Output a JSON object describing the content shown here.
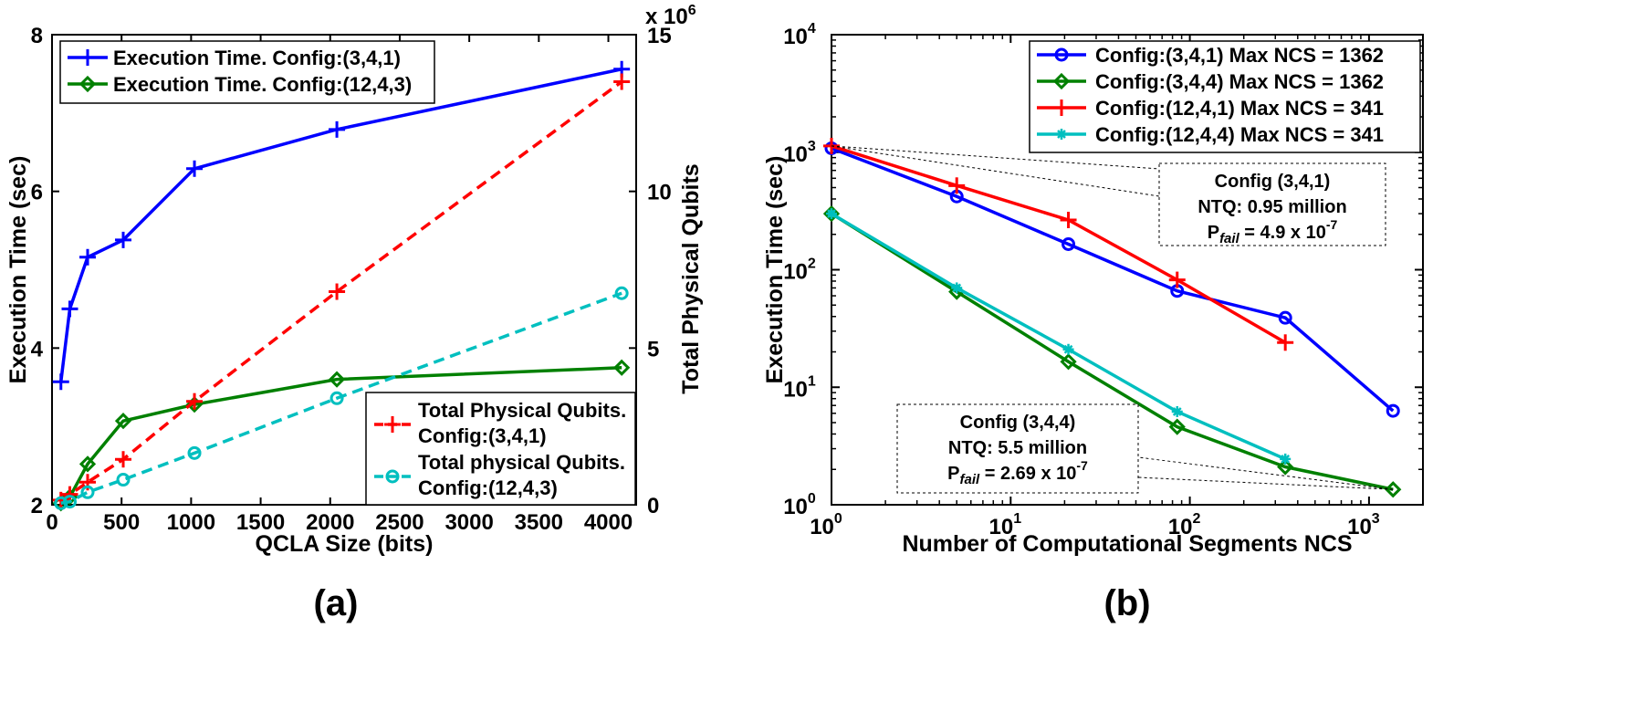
{
  "chart_data": [
    {
      "id": "a",
      "type": "line",
      "panel_label": "(a)",
      "xlabel": "QCLA Size (bits)",
      "ylabel": "Execution Time (sec)",
      "y2label": "Total Physical Qubits",
      "y2_multiplier": "x 10",
      "y2_multiplier_exp": "6",
      "xlim": [
        0,
        4200
      ],
      "ylim": [
        2,
        8
      ],
      "y2lim": [
        0,
        15
      ],
      "xticks": [
        0,
        500,
        1000,
        1500,
        2000,
        2500,
        3000,
        3500,
        4000
      ],
      "yticks": [
        2,
        4,
        6,
        8
      ],
      "y2ticks": [
        0,
        5,
        10,
        15
      ],
      "series": [
        {
          "name": "Execution Time. Config:(3,4,1)",
          "axis": "left",
          "color": "#0000ff",
          "dash": false,
          "marker": "plus",
          "x": [
            64,
            128,
            256,
            512,
            1024,
            2048,
            4096
          ],
          "values": [
            3.57,
            4.5,
            5.16,
            5.38,
            6.29,
            6.79,
            7.56
          ]
        },
        {
          "name": "Execution Time. Config:(12,4,3)",
          "axis": "left",
          "color": "#008000",
          "dash": false,
          "marker": "diamond",
          "x": [
            64,
            128,
            256,
            512,
            1024,
            2048,
            4096
          ],
          "values": [
            2.02,
            2.1,
            2.52,
            3.07,
            3.28,
            3.6,
            3.75
          ]
        },
        {
          "name_line1": "Total Physical Qubits.",
          "name_line2": "Config:(3,4,1)",
          "axis": "right",
          "color": "#ff0000",
          "dash": true,
          "marker": "plus",
          "x": [
            64,
            128,
            256,
            512,
            1024,
            2048,
            4096
          ],
          "values": [
            0.15,
            0.33,
            0.72,
            1.45,
            3.3,
            6.8,
            13.5
          ]
        },
        {
          "name_line1": "Total physical Qubits.",
          "name_line2": "Config:(12,4,3)",
          "axis": "right",
          "color": "#00bfbf",
          "dash": true,
          "marker": "circle",
          "x": [
            64,
            128,
            256,
            512,
            1024,
            2048,
            4096
          ],
          "values": [
            0.05,
            0.1,
            0.4,
            0.8,
            1.65,
            3.4,
            6.75
          ]
        }
      ]
    },
    {
      "id": "b",
      "type": "line",
      "panel_label": "(b)",
      "xlabel": "Number of Computational Segments NCS",
      "ylabel": "Execution Time (sec)",
      "xscale": "log",
      "yscale": "log",
      "xlim": [
        1,
        2000
      ],
      "ylim": [
        1,
        10000
      ],
      "xticks": [
        {
          "base": "10",
          "exp": "0",
          "value": 1
        },
        {
          "base": "10",
          "exp": "1",
          "value": 10
        },
        {
          "base": "10",
          "exp": "2",
          "value": 100
        },
        {
          "base": "10",
          "exp": "3",
          "value": 1000
        }
      ],
      "yticks": [
        {
          "base": "10",
          "exp": "0",
          "value": 1
        },
        {
          "base": "10",
          "exp": "1",
          "value": 10
        },
        {
          "base": "10",
          "exp": "2",
          "value": 100
        },
        {
          "base": "10",
          "exp": "3",
          "value": 1000
        },
        {
          "base": "10",
          "exp": "4",
          "value": 10000
        }
      ],
      "series": [
        {
          "name": "Config:(3,4,1) Max NCS = 1362",
          "color": "#0000ff",
          "marker": "circle",
          "x": [
            1,
            5,
            21,
            85,
            341,
            1362
          ],
          "values": [
            1080,
            420,
            165,
            66,
            39,
            6.3
          ]
        },
        {
          "name": "Config:(3,4,4) Max NCS = 1362",
          "color": "#008000",
          "marker": "diamond",
          "x": [
            1,
            5,
            21,
            85,
            341,
            1362
          ],
          "values": [
            300,
            65,
            16.5,
            4.6,
            2.1,
            1.35
          ]
        },
        {
          "name": "Config:(12,4,1) Max NCS = 341",
          "color": "#ff0000",
          "marker": "plus",
          "x": [
            1,
            5,
            21,
            85,
            341
          ],
          "values": [
            1130,
            520,
            265,
            82,
            24
          ]
        },
        {
          "name": "Config:(12,4,4) Max NCS = 341",
          "color": "#00bfbf",
          "marker": "star",
          "x": [
            1,
            5,
            21,
            85,
            341
          ],
          "values": [
            300,
            70,
            21,
            6.2,
            2.45
          ]
        }
      ],
      "annotations": [
        {
          "title": "Config (3,4,1)",
          "ntq": "NTQ: 0.95 million",
          "pfail_prefix": "P",
          "pfail_sub": "fail",
          "pfail_value": " = 4.9 x 10",
          "pfail_exp": "-7"
        },
        {
          "title": "Config (3,4,4)",
          "ntq": "NTQ: 5.5 million",
          "pfail_prefix": "P",
          "pfail_sub": "fail",
          "pfail_value": " = 2.69 x 10",
          "pfail_exp": "-7"
        }
      ]
    }
  ]
}
